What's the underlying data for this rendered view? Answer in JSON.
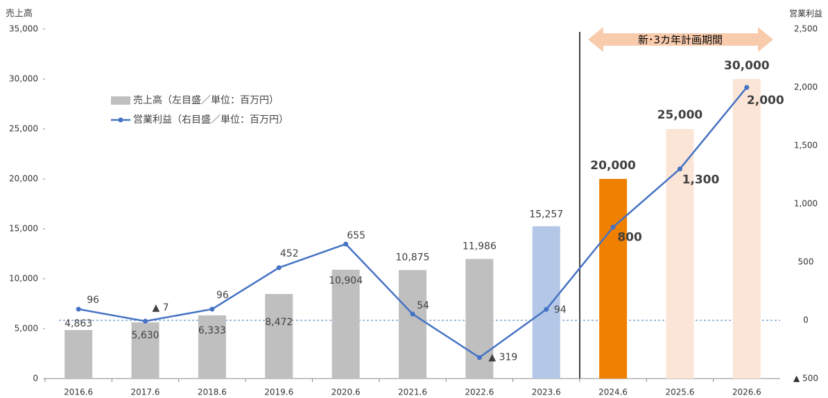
{
  "chart_data": {
    "type": "combo",
    "y_label": "売上高",
    "y2_label": "営業利益",
    "annotation": "新･3カ年計画期間",
    "categories": [
      "2016.6",
      "2017.6",
      "2018.6",
      "2019.6",
      "2020.6",
      "2021.6",
      "2022.6",
      "2023.6",
      "2024.6",
      "2025.6",
      "2026.6"
    ],
    "series": [
      {
        "name": "売上高（左目盛／単位：百万円）",
        "type": "bar",
        "color": "#bfbfbf",
        "colors": [
          "#bfbfbf",
          "#bfbfbf",
          "#bfbfbf",
          "#bfbfbf",
          "#bfbfbf",
          "#bfbfbf",
          "#bfbfbf",
          "#b4c7e7",
          "#f08000",
          "#fbe5d6",
          "#fbe5d6"
        ],
        "values": [
          4863,
          5630,
          6333,
          8472,
          10904,
          10875,
          11986,
          15257,
          20000,
          25000,
          30000
        ],
        "value_labels": [
          "4,863",
          "5,630",
          "6,333",
          "8,472",
          "10,904",
          "10,875",
          "11,986",
          "15,257",
          "20,000",
          "25,000",
          "30,000"
        ]
      },
      {
        "name": "営業利益（右目盛／単位：百万円）",
        "type": "line",
        "axis": "y2",
        "color": "#4472c4",
        "values": [
          96,
          -7,
          96,
          452,
          655,
          54,
          -319,
          94,
          800,
          1300,
          2000
        ],
        "value_labels": [
          "96",
          "▲ 7",
          "96",
          "452",
          "655",
          "54",
          "▲ 319",
          "94",
          "800",
          "1,300",
          "2,000"
        ]
      }
    ],
    "ylim": [
      0,
      35000
    ],
    "yticks": [
      0,
      {
        "value": 5000,
        "label": "5,000"
      },
      {
        "value": 10000,
        "label": "10,000"
      },
      {
        "value": 15000,
        "label": "15,000"
      },
      {
        "value": 20000,
        "label": "20,000"
      },
      {
        "value": 25000,
        "label": "25,000"
      },
      {
        "value": 30000,
        "label": "30,000"
      },
      {
        "value": 35000,
        "label": "35,000"
      }
    ],
    "y2lim": [
      -500,
      2500
    ],
    "y2ticks": [
      {
        "value": -500,
        "label": "▲ 500"
      },
      0,
      500,
      {
        "value": 1000,
        "label": "1,000"
      },
      {
        "value": 1500,
        "label": "1,500"
      },
      {
        "value": 2000,
        "label": "2,000"
      },
      {
        "value": 2500,
        "label": "2,500"
      }
    ]
  }
}
